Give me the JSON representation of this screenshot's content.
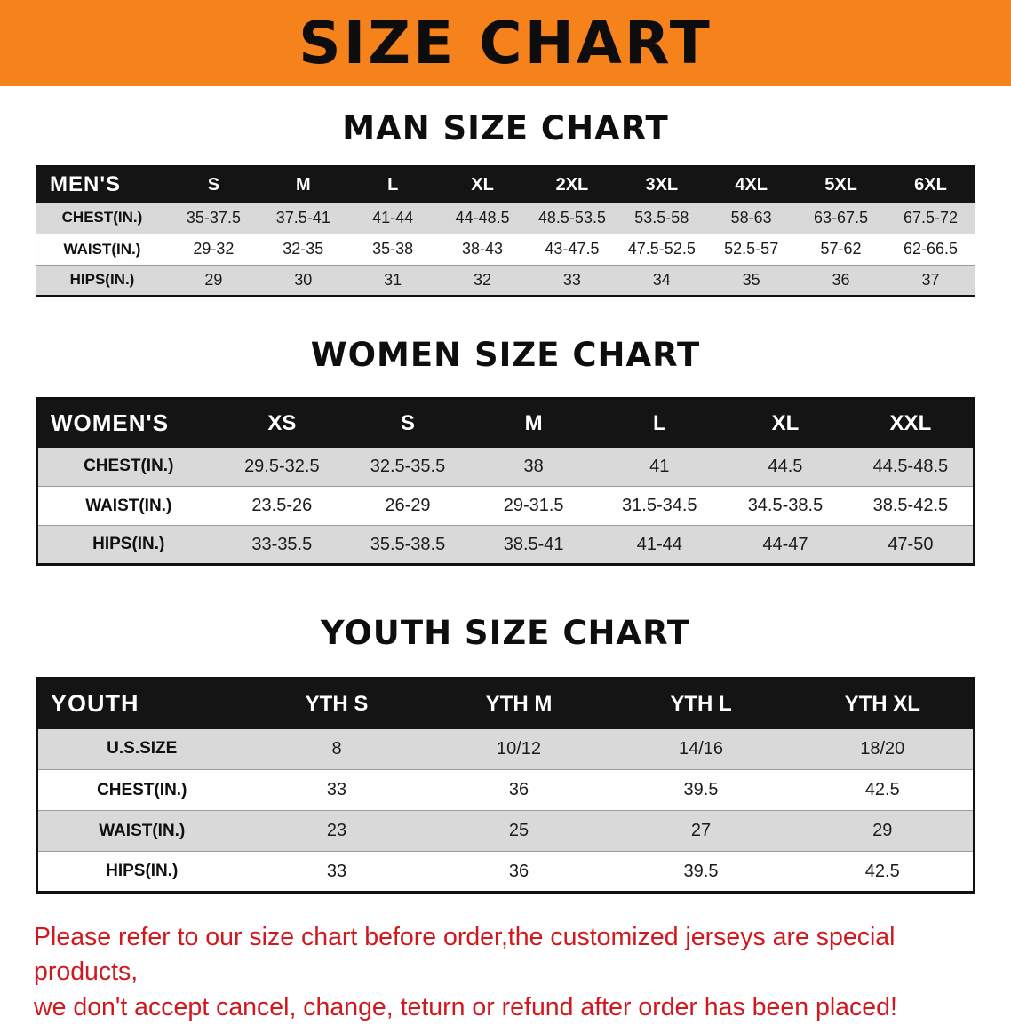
{
  "banner": {
    "title": "SIZE CHART",
    "bg_color": "#F6821C",
    "text_color": "#0d0d0d"
  },
  "sections": [
    {
      "heading": "MAN SIZE CHART",
      "table": {
        "header": [
          "MEN'S",
          "S",
          "M",
          "L",
          "XL",
          "2XL",
          "3XL",
          "4XL",
          "5XL",
          "6XL"
        ],
        "rows": [
          [
            "CHEST(IN.)",
            "35-37.5",
            "37.5-41",
            "41-44",
            "44-48.5",
            "48.5-53.5",
            "53.5-58",
            "58-63",
            "63-67.5",
            "67.5-72"
          ],
          [
            "WAIST(IN.)",
            "29-32",
            "32-35",
            "35-38",
            "38-43",
            "43-47.5",
            "47.5-52.5",
            "52.5-57",
            "57-62",
            "62-66.5"
          ],
          [
            "HIPS(IN.)",
            "29",
            "30",
            "31",
            "32",
            "33",
            "34",
            "35",
            "36",
            "37"
          ]
        ]
      }
    },
    {
      "heading": "WOMEN SIZE CHART",
      "table": {
        "header": [
          "WOMEN'S",
          "XS",
          "S",
          "M",
          "L",
          "XL",
          "XXL"
        ],
        "rows": [
          [
            "CHEST(IN.)",
            "29.5-32.5",
            "32.5-35.5",
            "38",
            "41",
            "44.5",
            "44.5-48.5"
          ],
          [
            "WAIST(IN.)",
            "23.5-26",
            "26-29",
            "29-31.5",
            "31.5-34.5",
            "34.5-38.5",
            "38.5-42.5"
          ],
          [
            "HIPS(IN.)",
            "33-35.5",
            "35.5-38.5",
            "38.5-41",
            "41-44",
            "44-47",
            "47-50"
          ]
        ]
      }
    },
    {
      "heading": "YOUTH SIZE CHART",
      "table": {
        "header": [
          "YOUTH",
          "YTH S",
          "YTH M",
          "YTH L",
          "YTH XL"
        ],
        "rows": [
          [
            "U.S.SIZE",
            "8",
            "10/12",
            "14/16",
            "18/20"
          ],
          [
            "CHEST(IN.)",
            "33",
            "36",
            "39.5",
            "42.5"
          ],
          [
            "WAIST(IN.)",
            "23",
            "25",
            "27",
            "29"
          ],
          [
            "HIPS(IN.)",
            "33",
            "36",
            "39.5",
            "42.5"
          ]
        ]
      }
    }
  ],
  "disclaimer": {
    "line1": "Please refer to our size chart before order,the customized jerseys are special products,",
    "line2": "we don't accept cancel, change, teturn or refund after order has been placed!",
    "text_color": "#d0191f"
  }
}
